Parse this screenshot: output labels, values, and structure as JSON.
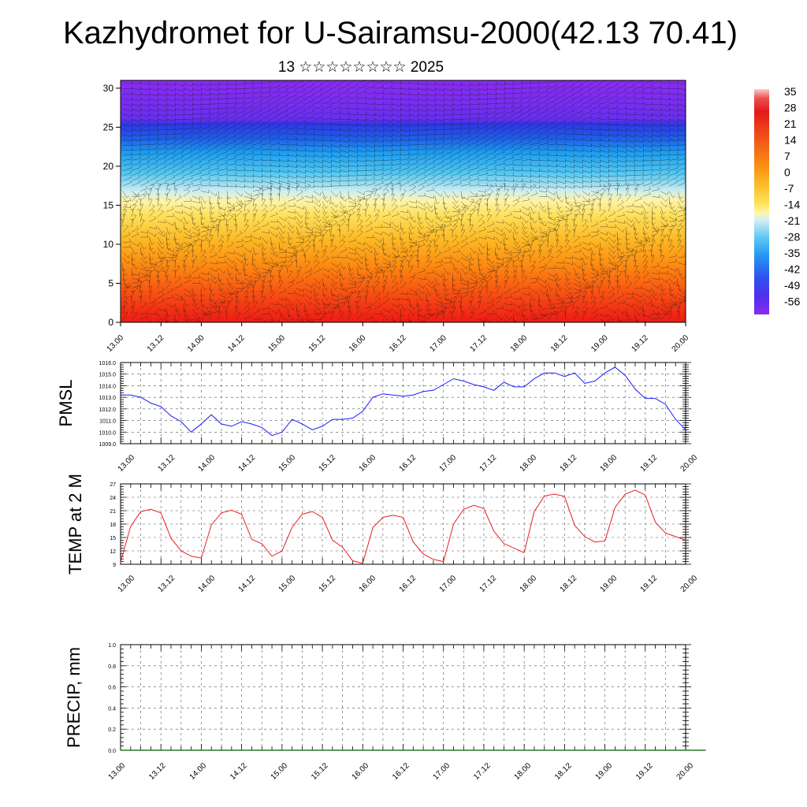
{
  "title": "Kazhydromet for U-Sairamsu-2000(42.13 70.41)",
  "subtitle": "13 ☆☆☆☆☆☆☆☆ 2025",
  "x_tick_labels": [
    "13.00",
    "13.12",
    "14.00",
    "14.12",
    "15.00",
    "15.12",
    "16.00",
    "16.12",
    "17.00",
    "17.12",
    "18.00",
    "18.12",
    "19.00",
    "19.12",
    "20.00"
  ],
  "chart_data": [
    {
      "type": "heatmap",
      "title": "",
      "xlabel": "",
      "ylabel": "",
      "y_ticks": [
        "0",
        "5",
        "10",
        "15",
        "20",
        "25",
        "30"
      ],
      "ylim": [
        0,
        31
      ],
      "colorbar": {
        "labels": [
          "35",
          "28",
          "21",
          "14",
          "7",
          "0",
          "-7",
          "-14",
          "-21",
          "-28",
          "-35",
          "-42",
          "-49",
          "-56"
        ],
        "colors_top_to_bottom": [
          "#f5c2c2",
          "#e81818",
          "#f23b16",
          "#fb7a10",
          "#fda815",
          "#fccf3a",
          "#fff07a",
          "#d9f0f5",
          "#54c8f0",
          "#2da0f0",
          "#2f6cf0",
          "#3a40f0",
          "#5a2ef0",
          "#8a2af0"
        ]
      },
      "description_of_field": "temperature cross-section with wind barbs",
      "data_levels_top_to_bottom": "violet above 25, blue 20-25, light cyan 15-20, yellow to orange 5-15, red below 5"
    },
    {
      "type": "line",
      "ylabel": "PMSL",
      "y_ticks": [
        "1009.0",
        "1010.0",
        "1011.0",
        "1012.0",
        "1013.0",
        "1014.0",
        "1015.0",
        "1016.0"
      ],
      "ylim": [
        1009,
        1016
      ],
      "x_step_hours": 3,
      "series": [
        {
          "color": "#1a1aff",
          "values": [
            1013.2,
            1013.2,
            1013.0,
            1012.5,
            1012.2,
            1011.4,
            1010.9,
            1010.0,
            1010.7,
            1011.5,
            1010.7,
            1010.5,
            1010.9,
            1010.7,
            1010.4,
            1009.7,
            1010.0,
            1011.1,
            1010.7,
            1010.2,
            1010.5,
            1011.1,
            1011.1,
            1011.2,
            1011.8,
            1013.0,
            1013.3,
            1013.2,
            1013.1,
            1013.2,
            1013.5,
            1013.6,
            1014.1,
            1014.6,
            1014.4,
            1014.1,
            1013.9,
            1013.6,
            1014.3,
            1013.9,
            1013.9,
            1014.6,
            1015.1,
            1015.1,
            1014.8,
            1015.1,
            1014.2,
            1014.4,
            1015.1,
            1015.6,
            1014.9,
            1013.7,
            1012.9,
            1012.9,
            1012.4,
            1011.1,
            1010.2
          ]
        }
      ]
    },
    {
      "type": "line",
      "ylabel": "TEMP at 2 M",
      "y_ticks": [
        "9",
        "12",
        "15",
        "18",
        "21",
        "24",
        "27"
      ],
      "ylim": [
        9,
        27
      ],
      "x_step_hours": 3,
      "series": [
        {
          "color": "#e82020",
          "values": [
            9.5,
            17.5,
            20.8,
            21.3,
            20.5,
            14.8,
            12.0,
            10.8,
            10.4,
            17.8,
            20.5,
            21.1,
            20.2,
            14.6,
            13.6,
            10.8,
            12.0,
            17.3,
            20.2,
            20.8,
            19.5,
            14.4,
            12.8,
            9.8,
            9.2,
            17.2,
            19.5,
            20.0,
            19.5,
            14.0,
            11.3,
            10.1,
            9.6,
            18.0,
            21.3,
            22.2,
            21.5,
            16.4,
            13.6,
            12.6,
            11.6,
            20.8,
            24.3,
            24.7,
            24.2,
            17.7,
            15.2,
            14.0,
            14.2,
            21.7,
            24.7,
            25.6,
            24.5,
            18.4,
            16.0,
            15.2,
            14.4
          ]
        }
      ]
    },
    {
      "type": "line",
      "ylabel": "PRECIP, mm",
      "y_ticks": [
        "0.0",
        "0.2",
        "0.4",
        "0.6",
        "0.8",
        "1.0"
      ],
      "ylim": [
        0,
        1
      ],
      "x_step_hours": 3,
      "series": [
        {
          "color": "#2a7a2a",
          "values": [
            0,
            0,
            0,
            0,
            0,
            0,
            0,
            0,
            0,
            0,
            0,
            0,
            0,
            0,
            0,
            0,
            0,
            0,
            0,
            0,
            0,
            0,
            0,
            0,
            0,
            0,
            0,
            0,
            0,
            0,
            0,
            0,
            0,
            0,
            0,
            0,
            0,
            0,
            0,
            0,
            0,
            0,
            0,
            0,
            0,
            0,
            0,
            0,
            0,
            0,
            0,
            0,
            0,
            0,
            0,
            0,
            0,
            0,
            0
          ]
        }
      ]
    }
  ]
}
